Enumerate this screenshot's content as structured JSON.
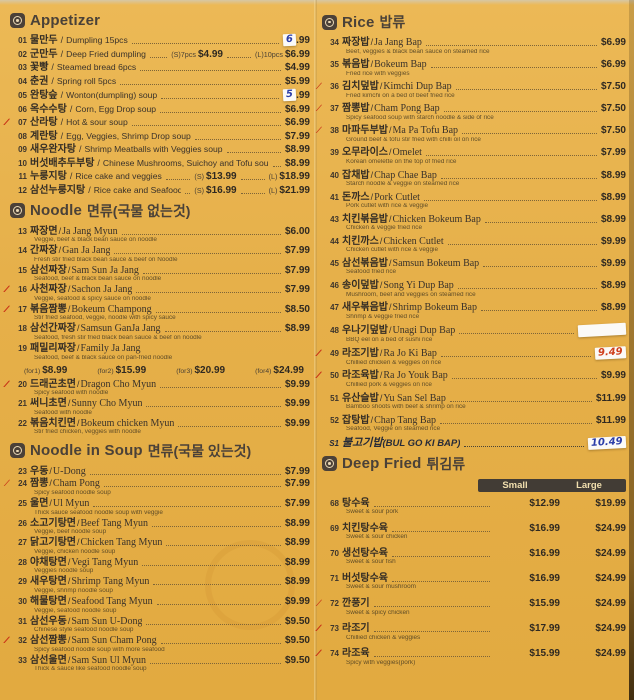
{
  "style": {
    "background": "#e6b04a",
    "ink": "#3a322a",
    "spicy_red": "#c93318",
    "band_dark": "#423c35",
    "band_text": "#f1dfae",
    "sticker_blue": "#2c3ea8",
    "sticker_red": "#cf401d"
  },
  "menu": {
    "columns": [
      {
        "sections": [
          {
            "title": "Appetizer",
            "title_kr": "",
            "plain_english": true,
            "items": [
              {
                "no": "01",
                "spicy": 0,
                "kr": "물만두",
                "en": "Dumpling 15pcs",
                "sticker": {
                  "type": "digit",
                  "digit": "6",
                  "suffix": ".99",
                  "ink": "blue"
                }
              },
              {
                "no": "02",
                "spicy": 0,
                "kr": "군만두",
                "en": "Deep Fried dumpling",
                "mid": [
                  "(S)7pcs",
                  "$4.99"
                ],
                "price_prefix": "(L)10pcs",
                "price": "$6.99"
              },
              {
                "no": "03",
                "spicy": 0,
                "kr": "꽃빵",
                "en": "Steamed bread 6pcs",
                "price": "$4.99"
              },
              {
                "no": "04",
                "spicy": 0,
                "kr": "춘권",
                "en": "Spring roll 5pcs",
                "price": "$5.99"
              },
              {
                "no": "05",
                "spicy": 0,
                "kr": "완탕슾",
                "en": "Wonton(dumpling) soup",
                "sticker": {
                  "type": "digit",
                  "digit": "5",
                  "suffix": ".99",
                  "ink": "blue"
                }
              },
              {
                "no": "06",
                "spicy": 0,
                "kr": "옥수수탕",
                "en": "Corn, Egg Drop soup",
                "price": "$6.99"
              },
              {
                "no": "07",
                "spicy": 2,
                "kr": "산라탕",
                "en": "Hot & sour soup",
                "price": "$6.99"
              },
              {
                "no": "08",
                "spicy": 0,
                "kr": "계란탕",
                "en": "Egg, Veggies, Shrimp Drop soup",
                "price": "$7.99"
              },
              {
                "no": "09",
                "spicy": 0,
                "kr": "새우완자탕",
                "en": "Shrimp Meatballs with Veggies soup",
                "price": "$8.99"
              },
              {
                "no": "10",
                "spicy": 0,
                "kr": "버섯배추두부탕",
                "en": "Chinese Mushrooms, Suichoy and Tofu soup",
                "price": "$8.99"
              },
              {
                "no": "11",
                "spicy": 0,
                "kr": "누룽지탕",
                "en": "Rice cake and veggies",
                "mid": [
                  "(S)",
                  "$13.99"
                ],
                "price_prefix": "(L)",
                "price": "$18.99"
              },
              {
                "no": "12",
                "spicy": 0,
                "kr": "삼선누룽지탕",
                "en": "Rice cake and Seafood veggies",
                "mid": [
                  "(S)",
                  "$16.99"
                ],
                "price_prefix": "(L)",
                "price": "$21.99"
              }
            ]
          },
          {
            "title": "Noodle",
            "title_kr": "면류(국물 없는것)",
            "items": [
              {
                "no": "13",
                "spicy": 0,
                "kr": "짜장면",
                "en": "Ja Jang Myun",
                "desc": "Veggie, beef & black bean sauce on noodle",
                "price": "$6.00"
              },
              {
                "no": "14",
                "spicy": 0,
                "kr": "간짜장",
                "en": "Gan Ja Jang",
                "desc": "Fresh stir fried black bean sauce & beef on Noodle",
                "price": "$7.99"
              },
              {
                "no": "15",
                "spicy": 0,
                "kr": "삼선짜장",
                "en": "Sam Sun Ja Jang",
                "desc": "Seafood, beef & black bean sauce on noodle",
                "price": "$7.99"
              },
              {
                "no": "16",
                "spicy": 2,
                "kr": "사천짜장",
                "en": "Sachon Ja Jang",
                "desc": "Veggie, seafood & spicy sauce on noodle",
                "price": "$7.99"
              },
              {
                "no": "17",
                "spicy": 2,
                "kr": "볶음짬뽕",
                "en": "Bokeum Champong",
                "desc": "Stir fried seafood, veggie, noodle with spicy sauce",
                "price": "$8.50"
              },
              {
                "no": "18",
                "spicy": 0,
                "kr": "삼선간짜장",
                "en": "Samsun GanJa Jang",
                "desc": "Seafood, fresh stir fried black bean sauce & beef on noodle",
                "price": "$8.99"
              },
              {
                "no": "19",
                "spicy": 0,
                "kr": "패밀리짜장",
                "en": "Family Ja Jang",
                "desc": "Seafood, beef & black sauce on pan-fried noodle",
                "price_row": [
                  [
                    "(for1)",
                    "$8.99"
                  ],
                  [
                    "(for2)",
                    "$15.99"
                  ],
                  [
                    "(for3)",
                    "$20.99"
                  ],
                  [
                    "(for4)",
                    "$24.99"
                  ]
                ]
              },
              {
                "no": "20",
                "spicy": 2,
                "kr": "드래곤초면",
                "en": "Dragon Cho Myun",
                "desc": "Spicy seafood with noodle",
                "price": "$9.99"
              },
              {
                "no": "21",
                "spicy": 0,
                "kr": "써니초면",
                "en": "Sunny Cho Myun",
                "desc": "Seafood with noodle",
                "price": "$9.99"
              },
              {
                "no": "22",
                "spicy": 0,
                "kr": "볶음치킨면",
                "en": "Bokeum chicken Myun",
                "desc": "Stir fried chicken, veggies with noodle",
                "price": "$9.99"
              }
            ]
          },
          {
            "title": "Noodle in Soup",
            "title_kr": "면류(국물 있는것)",
            "items": [
              {
                "no": "23",
                "spicy": 0,
                "kr": "우동",
                "en": "U-Dong",
                "price": "$7.99"
              },
              {
                "no": "24",
                "spicy": 1,
                "kr": "짬뽕",
                "en": "Cham Pong",
                "desc": "Spicy seafood noodle soup",
                "price": "$7.99"
              },
              {
                "no": "25",
                "spicy": 0,
                "kr": "울면",
                "en": "Ul Myun",
                "desc": "Thick sauce seafood noodle soup with veggie",
                "price": "$7.99"
              },
              {
                "no": "26",
                "spicy": 0,
                "kr": "소고기탕면",
                "en": "Beef Tang Myun",
                "desc": "Veggie, beef noodle soup",
                "price": "$8.99"
              },
              {
                "no": "27",
                "spicy": 0,
                "kr": "닭고기탕면",
                "en": "Chicken Tang Myun",
                "desc": "Veggie, chicken noodle soup",
                "price": "$8.99"
              },
              {
                "no": "28",
                "spicy": 0,
                "kr": "야채탕면",
                "en": "Vegi Tang Myun",
                "desc": "Veggies noodle soup",
                "price": "$8.99"
              },
              {
                "no": "29",
                "spicy": 0,
                "kr": "새우탕면",
                "en": "Shrimp Tang Myun",
                "desc": "Veggie, shrimp noodle soup",
                "price": "$8.99"
              },
              {
                "no": "30",
                "spicy": 0,
                "kr": "해물탕면",
                "en": "Seafood Tang Myun",
                "desc": "Veggie, seafood noodle soup",
                "price": "$9.99"
              },
              {
                "no": "31",
                "spicy": 0,
                "kr": "삼선우동",
                "en": "Sam Sun U-Dong",
                "desc": "Chinese style seafood noodle soup",
                "price": "$9.50"
              },
              {
                "no": "32",
                "spicy": 2,
                "kr": "삼선짬뽕",
                "en": "Sam Sun Cham Pong",
                "desc": "Spicy seafood noodle soup with more seafood",
                "price": "$9.50"
              },
              {
                "no": "33",
                "spicy": 0,
                "kr": "삼선울면",
                "en": "Sam Sun Ul Myun",
                "desc": "Thick & sauce like seafood noodle soup",
                "price": "$9.50"
              }
            ]
          }
        ]
      },
      {
        "sections": [
          {
            "title": "Rice",
            "title_kr": "밥류",
            "items": [
              {
                "no": "34",
                "spicy": 0,
                "kr": "짜장밥",
                "en": "Ja Jang Bap",
                "desc": "Beef, veggies & black bean sauce on steamed rice",
                "price": "$6.99"
              },
              {
                "no": "35",
                "spicy": 0,
                "kr": "볶음밥",
                "en": "Bokeum Bap",
                "desc": "Fried rice with veggies",
                "price": "$6.99"
              },
              {
                "no": "36",
                "spicy": 1,
                "kr": "김치덮밥",
                "en": "Kimchi Dup Bap",
                "desc": "Fried kimchi on a bed of beef fried rice",
                "price": "$7.50"
              },
              {
                "no": "37",
                "spicy": 1,
                "kr": "짬뽕밥",
                "en": "Cham Pong Bap",
                "desc": "Spicy seafood soup with starch noodle & side of rice",
                "price": "$7.50"
              },
              {
                "no": "38",
                "spicy": 1,
                "kr": "마파두부밥",
                "en": "Ma Pa Tofu Bap",
                "desc": "Ground beef & tofu stir fried with chilli oil on rice",
                "price": "$7.50"
              },
              {
                "no": "39",
                "spicy": 0,
                "kr": "오무라이스",
                "en": "Omelet",
                "desc": "Korean omelette on the top of fried rice",
                "price": "$7.99"
              },
              {
                "no": "40",
                "spicy": 0,
                "kr": "잡채밥",
                "en": "Chap Chae Bap",
                "desc": "Starch noodle & veggie on steamed rice",
                "price": "$8.99"
              },
              {
                "no": "41",
                "spicy": 0,
                "kr": "돈까스",
                "en": "Pork Cutlet",
                "desc": "Pork cutlet with rice & veggie",
                "price": "$8.99"
              },
              {
                "no": "43",
                "spicy": 0,
                "kr": "치킨볶음밥",
                "en": "Chicken Bokeum Bap",
                "desc": "Chicken & veggie fried rice",
                "price": "$8.99"
              },
              {
                "no": "44",
                "spicy": 0,
                "kr": "치킨까스",
                "en": "Chicken Cutlet",
                "desc": "Chicken cutlet with rice & veggie",
                "price": "$9.99"
              },
              {
                "no": "45",
                "spicy": 0,
                "kr": "삼선볶음밥",
                "en": "Samsun Bokeum Bap",
                "desc": "Seafood fried rice",
                "price": "$9.99"
              },
              {
                "no": "46",
                "spicy": 0,
                "kr": "송이덮밥",
                "en": "Song Yi Dup Bap",
                "desc": "Mushroom, beef and veggies on steamed rice",
                "price": "$8.99"
              },
              {
                "no": "47",
                "spicy": 0,
                "kr": "새우볶음밥",
                "en": "Shrimp Bokeum Bap",
                "desc": "Shrimp & veggie fried rice",
                "price": "$8.99"
              },
              {
                "no": "48",
                "spicy": 0,
                "kr": "우나기덮밥",
                "en": "Unagi Dup Bap",
                "desc": "BBQ eel on a bed of sushi rice",
                "sticker": {
                  "type": "blank"
                }
              },
              {
                "no": "49",
                "spicy": 2,
                "kr": "라조기밥",
                "en": "Ra Jo Ki Bap",
                "desc": "Chillied chicken & veggies on rice",
                "sticker": {
                  "type": "price",
                  "text": "9.49",
                  "ink": "red"
                }
              },
              {
                "no": "50",
                "spicy": 2,
                "kr": "라조육밥",
                "en": "Ra Jo Youk Bap",
                "desc": "Chillied pork & veggies on rice",
                "price": "$9.99"
              },
              {
                "no": "51",
                "spicy": 0,
                "kr": "유산슬밥",
                "en": "Yu San Sel Bap",
                "desc": "Bamboo shoots with beef & shrimp on rice",
                "price": "$11.99"
              },
              {
                "no": "52",
                "spicy": 0,
                "kr": "잡탕밥",
                "en": "Chap Tang Bap",
                "desc": "Seafood, Veggie on steamed rice",
                "price": "$11.99"
              },
              {
                "no": "S1",
                "spicy": 0,
                "handwritten": true,
                "kr": "불고기밥",
                "en": "(BUL GO KI BAP)",
                "sticker": {
                  "type": "price",
                  "text": "10.49",
                  "ink": "blue"
                }
              }
            ]
          },
          {
            "title": "Deep Fried",
            "title_kr": "튀김류",
            "price_header": [
              "Small",
              "Large"
            ],
            "items": [
              {
                "no": "68",
                "spicy": 0,
                "kr": "탕수육",
                "desc": "Sweet & sour pork",
                "prices": [
                  "$12.99",
                  "$19.99"
                ]
              },
              {
                "no": "69",
                "spicy": 0,
                "kr": "치킨탕수육",
                "desc": "Sweet & sour chicken",
                "prices": [
                  "$16.99",
                  "$24.99"
                ]
              },
              {
                "no": "70",
                "spicy": 0,
                "kr": "생선탕수육",
                "desc": "Sweet & sour fish",
                "prices": [
                  "$16.99",
                  "$24.99"
                ]
              },
              {
                "no": "71",
                "spicy": 0,
                "kr": "버섯탕수육",
                "desc": "Sweet & sour mushroom",
                "prices": [
                  "$16.99",
                  "$24.99"
                ]
              },
              {
                "no": "72",
                "spicy": 1,
                "kr": "깐풍기",
                "desc": "Sweet & spicy chicken",
                "prices": [
                  "$15.99",
                  "$24.99"
                ]
              },
              {
                "no": "73",
                "spicy": 2,
                "kr": "라조기",
                "desc": "Chillied chicken & veggies",
                "prices": [
                  "$17.99",
                  "$24.99"
                ]
              },
              {
                "no": "74",
                "spicy": 2,
                "kr": "라조육",
                "desc": "Spicy with veggies(pork)",
                "prices": [
                  "$15.99",
                  "$24.99"
                ]
              }
            ]
          }
        ]
      }
    ]
  }
}
